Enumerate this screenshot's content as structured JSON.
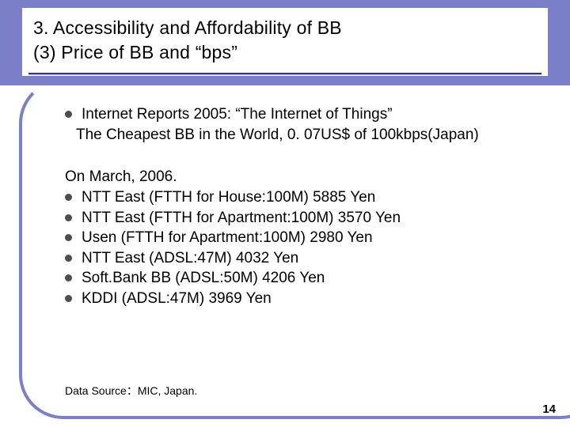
{
  "title": {
    "line1": "3.  Accessibility and Affordability of BB",
    "line2": "(3) Price of BB and “bps”"
  },
  "intro": {
    "bullet": "Internet Reports 2005: “The Internet of Things”",
    "subline": "The Cheapest BB in the World, 0. 07US$ of 100kbps(Japan)"
  },
  "section2": {
    "heading": "On March, 2006.",
    "items": [
      "NTT East (FTTH for House:100M)  5885 Yen",
      "NTT East (FTTH for Apartment:100M)  3570 Yen",
      "Usen (FTTH for Apartment:100M)  2980 Yen",
      "NTT East (ADSL:47M) 4032 Yen",
      "Soft.Bank BB (ADSL:50M)  4206 Yen",
      "KDDI (ADSL:47M)  3969 Yen"
    ]
  },
  "source": "Data Source：MIC, Japan.",
  "page_number": "14",
  "colors": {
    "accent": "#7a7fc8",
    "text": "#000000",
    "bullet": "#4d4d4d",
    "background": "#ffffff"
  }
}
